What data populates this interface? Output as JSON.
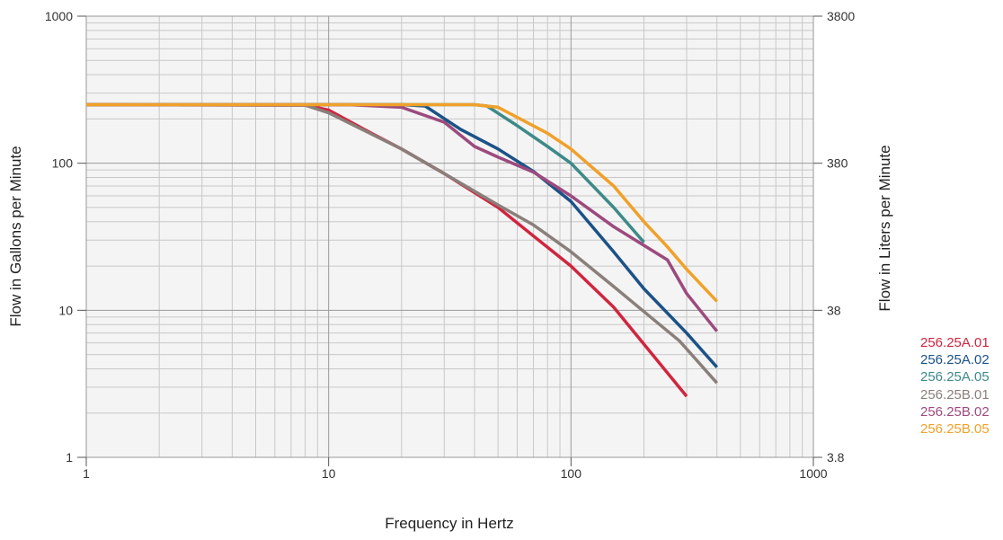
{
  "chart_data": {
    "type": "line",
    "title": "",
    "xlabel": "Frequency in Hertz",
    "ylabel": "Flow in Gallons per Minute",
    "y2label": "Flow in Liters per Minute",
    "xscale": "log",
    "yscale": "log",
    "xlim": [
      1,
      1000
    ],
    "ylim": [
      1,
      1000
    ],
    "y2lim": [
      3.8,
      3800
    ],
    "xticks": [
      "1",
      "10",
      "100",
      "1000"
    ],
    "yticks": [
      "1",
      "10",
      "100",
      "1000"
    ],
    "y2ticks": [
      "3.8",
      "38",
      "380",
      "3800"
    ],
    "grid": true,
    "legend_position": "right",
    "series": [
      {
        "name": "256.25A.01",
        "color": "#d0253f",
        "points": [
          [
            1,
            250
          ],
          [
            8,
            248
          ],
          [
            10,
            230
          ],
          [
            15,
            160
          ],
          [
            20,
            125
          ],
          [
            30,
            85
          ],
          [
            50,
            50
          ],
          [
            70,
            32
          ],
          [
            100,
            20
          ],
          [
            150,
            10.5
          ],
          [
            300,
            2.6
          ]
        ]
      },
      {
        "name": "256.25A.02",
        "color": "#1b5287",
        "points": [
          [
            1,
            250
          ],
          [
            20,
            250
          ],
          [
            25,
            245
          ],
          [
            35,
            170
          ],
          [
            50,
            125
          ],
          [
            70,
            88
          ],
          [
            100,
            55
          ],
          [
            150,
            25
          ],
          [
            200,
            14
          ],
          [
            300,
            7
          ],
          [
            400,
            4.1
          ]
        ]
      },
      {
        "name": "256.25A.05",
        "color": "#3e8a88",
        "points": [
          [
            1,
            250
          ],
          [
            40,
            250
          ],
          [
            45,
            245
          ],
          [
            60,
            180
          ],
          [
            80,
            130
          ],
          [
            100,
            100
          ],
          [
            150,
            50
          ],
          [
            200,
            29
          ]
        ]
      },
      {
        "name": "256.25B.01",
        "color": "#8a7f7a",
        "points": [
          [
            1,
            250
          ],
          [
            8,
            248
          ],
          [
            10,
            220
          ],
          [
            20,
            125
          ],
          [
            30,
            85
          ],
          [
            50,
            52
          ],
          [
            70,
            38
          ],
          [
            100,
            25
          ],
          [
            150,
            14.5
          ],
          [
            200,
            9.8
          ],
          [
            280,
            6.2
          ],
          [
            400,
            3.2
          ]
        ]
      },
      {
        "name": "256.25B.02",
        "color": "#9c4a7e",
        "points": [
          [
            1,
            250
          ],
          [
            12,
            250
          ],
          [
            20,
            240
          ],
          [
            30,
            190
          ],
          [
            40,
            130
          ],
          [
            50,
            110
          ],
          [
            70,
            87
          ],
          [
            100,
            60
          ],
          [
            150,
            37
          ],
          [
            250,
            22
          ],
          [
            300,
            13
          ],
          [
            400,
            7.2
          ]
        ]
      },
      {
        "name": "256.25B.05",
        "color": "#f0a12a",
        "points": [
          [
            1,
            250
          ],
          [
            40,
            250
          ],
          [
            50,
            240
          ],
          [
            80,
            160
          ],
          [
            100,
            125
          ],
          [
            150,
            70
          ],
          [
            200,
            40
          ],
          [
            250,
            27
          ],
          [
            300,
            19
          ],
          [
            400,
            11.5
          ]
        ]
      }
    ]
  }
}
